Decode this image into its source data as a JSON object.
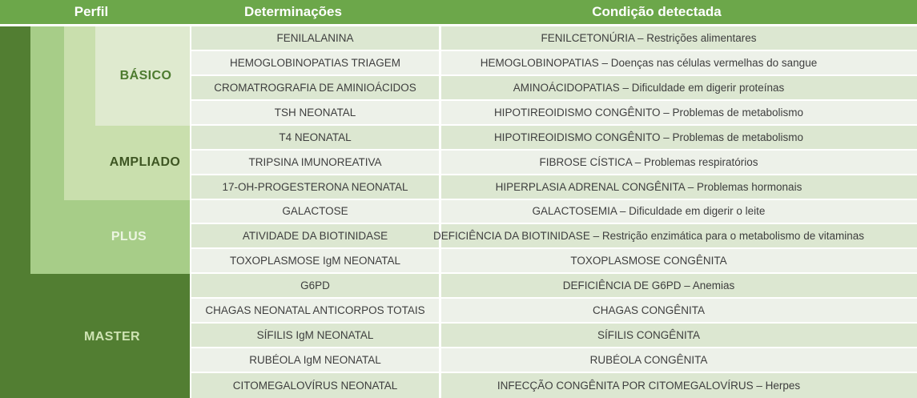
{
  "header": {
    "perfil": "Perfil",
    "determinacoes": "Determinações",
    "condicao": "Condição detectada"
  },
  "profiles": [
    {
      "name": "BÁSICO",
      "row_span": "rows 1-4"
    },
    {
      "name": "AMPLIADO",
      "row_span": "rows 1-7"
    },
    {
      "name": "PLUS",
      "row_span": "rows 1-10"
    },
    {
      "name": "MASTER",
      "row_span": "rows 1-15"
    }
  ],
  "rows": [
    {
      "determination": "FENILALANINA",
      "condition": "FENILCETONÚRIA – Restrições alimentares"
    },
    {
      "determination": "HEMOGLOBINOPATIAS TRIAGEM",
      "condition": "HEMOGLOBINOPATIAS – Doenças nas células vermelhas do sangue"
    },
    {
      "determination": "CROMATROGRAFIA DE AMINIOÁCIDOS",
      "condition": "AMINOÁCIDOPATIAS – Dificuldade em digerir proteínas"
    },
    {
      "determination": "TSH NEONATAL",
      "condition": "HIPOTIREOIDISMO CONGÊNITO – Problemas de metabolismo"
    },
    {
      "determination": "T4 NEONATAL",
      "condition": "HIPOTIREOIDISMO CONGÊNITO – Problemas de metabolismo"
    },
    {
      "determination": "TRIPSINA IMUNOREATIVA",
      "condition": "FIBROSE CÍSTICA – Problemas respiratórios"
    },
    {
      "determination": "17-OH-PROGESTERONA NEONATAL",
      "condition": "HIPERPLASIA ADRENAL CONGÊNITA – Problemas hormonais"
    },
    {
      "determination": "GALACTOSE",
      "condition": "GALACTOSEMIA – Dificuldade em digerir o leite"
    },
    {
      "determination": "ATIVIDADE DA BIOTINIDASE",
      "condition": "DEFICIÊNCIA DA BIOTINIDASE – Restrição enzimática para o metabolismo de vitaminas"
    },
    {
      "determination": "TOXOPLASMOSE IgM NEONATAL",
      "condition": "TOXOPLASMOSE CONGÊNITA"
    },
    {
      "determination": "G6PD",
      "condition": "DEFICIÊNCIA DE G6PD – Anemias"
    },
    {
      "determination": "CHAGAS NEONATAL ANTICORPOS TOTAIS",
      "condition": "CHAGAS CONGÊNITA"
    },
    {
      "determination": "SÍFILIS IgM NEONATAL",
      "condition": "SÍFILIS CONGÊNITA"
    },
    {
      "determination": "RUBÉOLA IgM NEONATAL",
      "condition": "RUBÉOLA CONGÊNITA"
    },
    {
      "determination": "CITOMEGALOVÍRUS NEONATAL",
      "condition": "INFECÇÃO CONGÊNITA POR CITOMEGALOVÍRUS – Herpes"
    }
  ],
  "colors": {
    "header_bg": "#6ca74a",
    "header_text": "#ffffff",
    "master_bg": "#527e32",
    "plus_bg": "#a7cd88",
    "ampliado_bg": "#c9dfad",
    "basico_bg": "#dfeacf",
    "basico_label": "#4d7b2f",
    "ampliado_label": "#3e5623",
    "plus_label": "#ecf5e1",
    "master_label": "#cee3b3",
    "row_odd_bg": "#dce7d1",
    "row_even_bg": "#edf1e9",
    "row_text": "#3e3e3e",
    "separator": "#ffffff"
  }
}
